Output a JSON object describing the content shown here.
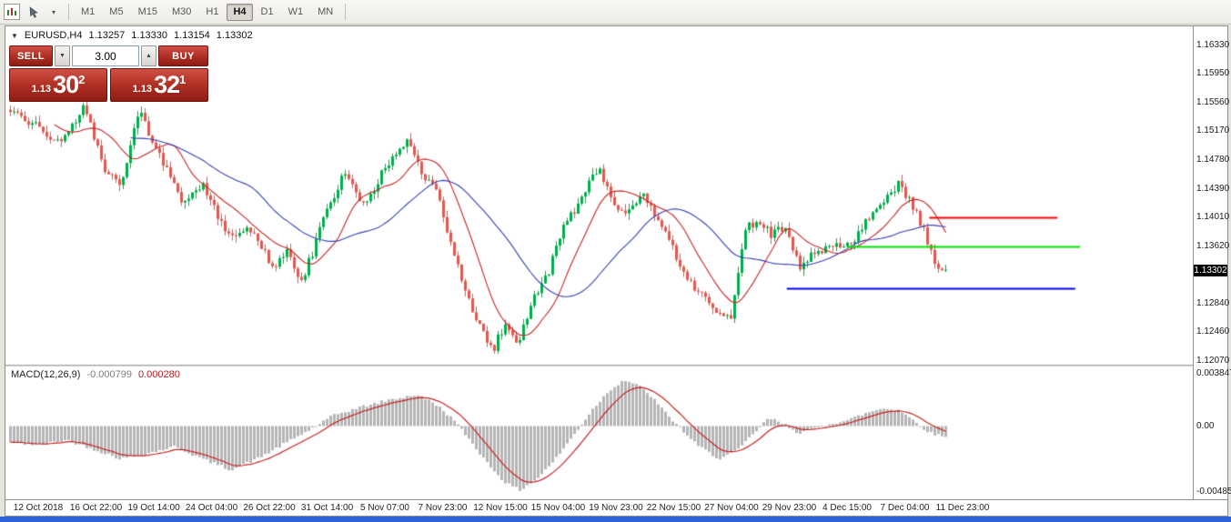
{
  "icons": {
    "collapse": "▼",
    "spin_up": "▲",
    "spin_down": "▼",
    "tool_caret": "▾"
  },
  "toolbar": {
    "timeframes": [
      "M1",
      "M5",
      "M15",
      "M30",
      "H1",
      "H4",
      "D1",
      "W1",
      "MN"
    ],
    "selected_timeframe": "H4"
  },
  "quote": {
    "symbol_period": "EURUSD,H4",
    "open": "1.13257",
    "high": "1.13330",
    "low": "1.13154",
    "close": "1.13302"
  },
  "trade_panel": {
    "sell_label": "SELL",
    "buy_label": "BUY",
    "volume": "3.00",
    "sell_price": {
      "prefix": "1.13",
      "pips": "30",
      "sup": "2"
    },
    "buy_price": {
      "prefix": "1.13",
      "pips": "32",
      "sup": "1"
    }
  },
  "price_tag": "1.13302",
  "macd_label": {
    "name": "MACD(12,26,9)",
    "macd_value": "-0.000799",
    "signal_value": "0.000280"
  },
  "chart_data": [
    {
      "type": "candlestick",
      "title": "EURUSD,H4",
      "ohlc_current": {
        "open": 1.13257,
        "high": 1.1333,
        "low": 1.13154,
        "close": 1.13302
      },
      "ylim": [
        1.12023,
        1.16586
      ],
      "grid": false,
      "y_ticks": [
        "1.16330",
        "1.15950",
        "1.15560",
        "1.15170",
        "1.14780",
        "1.14390",
        "1.14010",
        "1.13620",
        "1.12840",
        "1.12460",
        "1.12070"
      ],
      "x_ticks": [
        "12 Oct 2018",
        "16 Oct 22:00",
        "19 Oct 14:00",
        "24 Oct 04:00",
        "26 Oct 22:00",
        "31 Oct 14:00",
        "5 Nov 07:00",
        "7 Nov 23:00",
        "12 Nov 15:00",
        "15 Nov 04:00",
        "19 Nov 23:00",
        "22 Nov 15:00",
        "27 Nov 04:00",
        "29 Nov 23:00",
        "4 Dec 15:00",
        "7 Dec 04:00",
        "11 Dec 23:00"
      ],
      "x_tick_start": 36,
      "x_tick_step": 63.5,
      "candles": {
        "count": 258,
        "x0": 4,
        "spacing": 4,
        "width": 3,
        "price_path": [
          [
            0.0,
            1.154
          ],
          [
            0.031,
            1.1525
          ],
          [
            0.048,
            1.1497
          ],
          [
            0.079,
            1.155
          ],
          [
            0.101,
            1.1467
          ],
          [
            0.118,
            1.1448
          ],
          [
            0.138,
            1.1542
          ],
          [
            0.159,
            1.149
          ],
          [
            0.182,
            1.1422
          ],
          [
            0.205,
            1.1445
          ],
          [
            0.233,
            1.1376
          ],
          [
            0.259,
            1.1388
          ],
          [
            0.281,
            1.133
          ],
          [
            0.295,
            1.1355
          ],
          [
            0.312,
            1.1315
          ],
          [
            0.336,
            1.14
          ],
          [
            0.356,
            1.1458
          ],
          [
            0.38,
            1.1418
          ],
          [
            0.409,
            1.1487
          ],
          [
            0.425,
            1.1507
          ],
          [
            0.44,
            1.1462
          ],
          [
            0.457,
            1.143
          ],
          [
            0.472,
            1.1365
          ],
          [
            0.488,
            1.1295
          ],
          [
            0.504,
            1.1245
          ],
          [
            0.517,
            1.1225
          ],
          [
            0.53,
            1.1262
          ],
          [
            0.543,
            1.1232
          ],
          [
            0.559,
            1.1292
          ],
          [
            0.576,
            1.133
          ],
          [
            0.591,
            1.1393
          ],
          [
            0.608,
            1.1415
          ],
          [
            0.622,
            1.1458
          ],
          [
            0.63,
            1.147
          ],
          [
            0.643,
            1.1422
          ],
          [
            0.659,
            1.1405
          ],
          [
            0.675,
            1.1432
          ],
          [
            0.69,
            1.14
          ],
          [
            0.707,
            1.1362
          ],
          [
            0.724,
            1.1322
          ],
          [
            0.74,
            1.1292
          ],
          [
            0.758,
            1.1266
          ],
          [
            0.772,
            1.127
          ],
          [
            0.785,
            1.1382
          ],
          [
            0.799,
            1.14
          ],
          [
            0.814,
            1.1376
          ],
          [
            0.828,
            1.139
          ],
          [
            0.843,
            1.1336
          ],
          [
            0.86,
            1.1352
          ],
          [
            0.876,
            1.1366
          ],
          [
            0.892,
            1.1356
          ],
          [
            0.908,
            1.1382
          ],
          [
            0.93,
            1.142
          ],
          [
            0.95,
            1.1446
          ],
          [
            0.969,
            1.1408
          ],
          [
            0.988,
            1.1342
          ],
          [
            1.0,
            1.133
          ]
        ]
      },
      "last_close": 1.13302,
      "up_color": "#00ae4a",
      "down_color": "#e05a50",
      "ma_fast_color": "#c92121",
      "ma_slow_color": "#3640b4",
      "hlines": [
        {
          "name": "resistance-line",
          "color": "#ff0000",
          "price": 1.1401,
          "x1": 0.778,
          "x2": 0.886
        },
        {
          "name": "mid-line",
          "color": "#00e400",
          "price": 1.1362,
          "x1": 0.709,
          "x2": 0.905
        },
        {
          "name": "support-line",
          "color": "#0000ff",
          "price": 1.1305,
          "x1": 0.658,
          "x2": 0.901
        }
      ]
    },
    {
      "type": "macd_histogram",
      "params": "12,26,9",
      "current_macd": -0.000799,
      "current_signal": 0.00028,
      "ylim": [
        -0.0053,
        0.00437
      ],
      "y_ticks": [
        "0.003847",
        "0.00",
        "-0.004856"
      ],
      "hist_color": "#b5b5b5",
      "signal_color": "#c92121",
      "macd_path": [
        [
          0.0,
          -0.0012
        ],
        [
          0.031,
          -0.0014
        ],
        [
          0.06,
          -0.001
        ],
        [
          0.089,
          -0.0017
        ],
        [
          0.118,
          -0.0024
        ],
        [
          0.147,
          -0.002
        ],
        [
          0.176,
          -0.0015
        ],
        [
          0.205,
          -0.0024
        ],
        [
          0.235,
          -0.0032
        ],
        [
          0.264,
          -0.0024
        ],
        [
          0.293,
          -0.0013
        ],
        [
          0.322,
          -0.0002
        ],
        [
          0.346,
          0.0008
        ],
        [
          0.375,
          0.0014
        ],
        [
          0.404,
          0.0019
        ],
        [
          0.433,
          0.0023
        ],
        [
          0.453,
          0.0017
        ],
        [
          0.472,
          0.0006
        ],
        [
          0.491,
          -0.001
        ],
        [
          0.511,
          -0.0028
        ],
        [
          0.53,
          -0.0042
        ],
        [
          0.545,
          -0.0047
        ],
        [
          0.564,
          -0.0038
        ],
        [
          0.583,
          -0.0024
        ],
        [
          0.603,
          -0.0006
        ],
        [
          0.622,
          0.0012
        ],
        [
          0.64,
          0.0026
        ],
        [
          0.656,
          0.0034
        ],
        [
          0.671,
          0.003
        ],
        [
          0.685,
          0.0022
        ],
        [
          0.7,
          0.001
        ],
        [
          0.714,
          0.0
        ],
        [
          0.734,
          -0.0014
        ],
        [
          0.758,
          -0.0024
        ],
        [
          0.777,
          -0.0018
        ],
        [
          0.797,
          -0.0004
        ],
        [
          0.811,
          0.0006
        ],
        [
          0.828,
          0.0001
        ],
        [
          0.843,
          -0.0005
        ],
        [
          0.86,
          -0.0002
        ],
        [
          0.876,
          0.0002
        ],
        [
          0.894,
          0.0004
        ],
        [
          0.913,
          0.0009
        ],
        [
          0.932,
          0.0013
        ],
        [
          0.95,
          0.0012
        ],
        [
          0.966,
          0.0004
        ],
        [
          0.983,
          -0.0005
        ],
        [
          1.0,
          -0.000799
        ]
      ]
    }
  ]
}
